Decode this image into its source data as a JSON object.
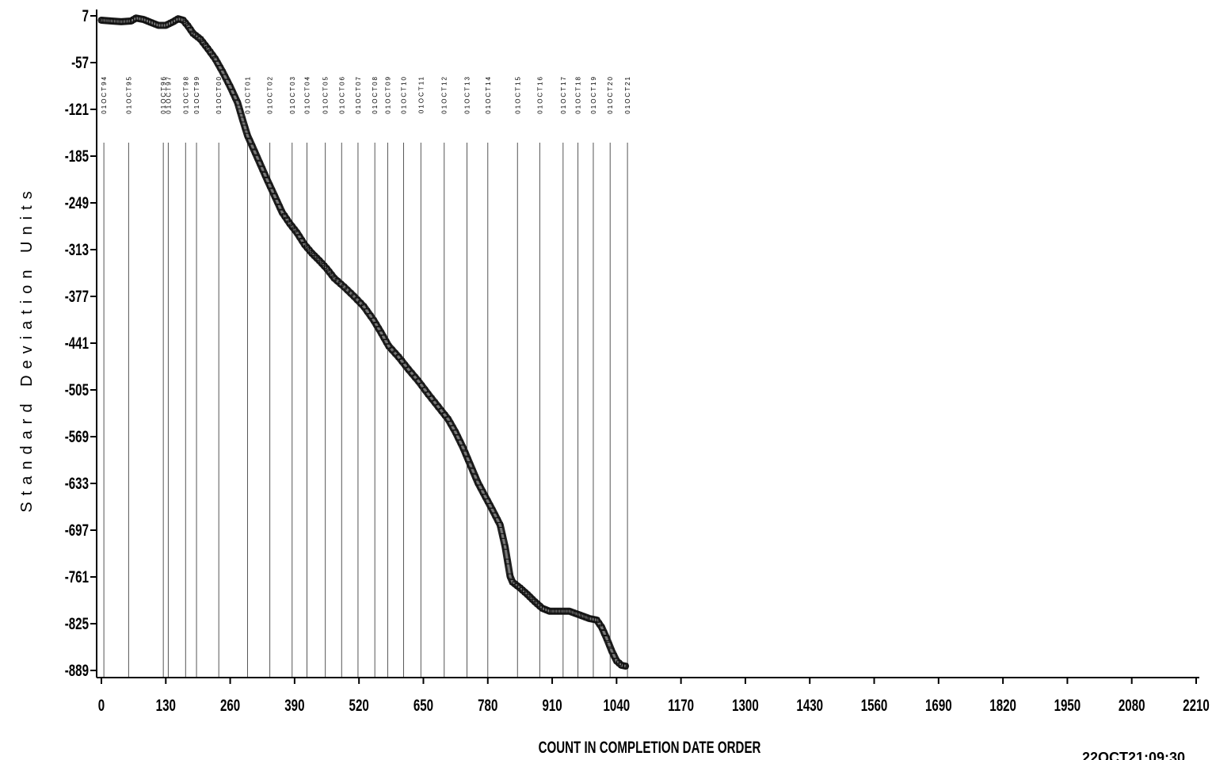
{
  "chart_data": {
    "type": "line",
    "xlabel": "COUNT IN COMPLETION DATE ORDER",
    "ylabel": "Standard Deviation Units",
    "timestamp": "22OCT21:09:30",
    "xlim": [
      0,
      2210
    ],
    "ylim": [
      -889,
      7
    ],
    "x_ticks": [
      0,
      130,
      260,
      390,
      520,
      650,
      780,
      910,
      1040,
      1170,
      1300,
      1430,
      1560,
      1690,
      1820,
      1950,
      2080,
      2210
    ],
    "x_tick_labels": [
      "0",
      "130",
      "260",
      "390",
      "520",
      "650",
      "780",
      "910",
      "1040",
      "1170",
      "1300",
      "1430",
      "1560",
      "1690",
      "1820",
      "1950",
      "2080",
      "2210"
    ],
    "y_ticks": [
      7,
      -57,
      -121,
      -185,
      -249,
      -313,
      -377,
      -441,
      -505,
      -569,
      -633,
      -697,
      -761,
      -825,
      -889
    ],
    "y_tick_labels": [
      "7",
      "-57",
      "-121",
      "-185",
      "-249",
      "-313",
      "-377",
      "-441",
      "-505",
      "-569",
      "-633",
      "-697",
      "-761",
      "-825",
      "-889"
    ],
    "reference_lines": [
      {
        "x": 5,
        "label": "01OCT94"
      },
      {
        "x": 55,
        "label": "01OCT95"
      },
      {
        "x": 125,
        "label": "01OCT96"
      },
      {
        "x": 135,
        "label": "01OCT97"
      },
      {
        "x": 170,
        "label": "01OCT98"
      },
      {
        "x": 192,
        "label": "01OCT99"
      },
      {
        "x": 237,
        "label": "01OCT00"
      },
      {
        "x": 295,
        "label": "01OCT01"
      },
      {
        "x": 340,
        "label": "01OCT02"
      },
      {
        "x": 385,
        "label": "01OCT03"
      },
      {
        "x": 415,
        "label": "01OCT04"
      },
      {
        "x": 452,
        "label": "01OCT05"
      },
      {
        "x": 485,
        "label": "01OCT06"
      },
      {
        "x": 518,
        "label": "01OCT07"
      },
      {
        "x": 552,
        "label": "01OCT08"
      },
      {
        "x": 578,
        "label": "01OCT09"
      },
      {
        "x": 610,
        "label": "01OCT10"
      },
      {
        "x": 645,
        "label": "01OCT11"
      },
      {
        "x": 692,
        "label": "01OCT12"
      },
      {
        "x": 738,
        "label": "01OCT13"
      },
      {
        "x": 780,
        "label": "01OCT14"
      },
      {
        "x": 840,
        "label": "01OCT15"
      },
      {
        "x": 885,
        "label": "01OCT16"
      },
      {
        "x": 932,
        "label": "01OCT17"
      },
      {
        "x": 962,
        "label": "01OCT18"
      },
      {
        "x": 993,
        "label": "01OCT19"
      },
      {
        "x": 1027,
        "label": "01OCT20"
      },
      {
        "x": 1062,
        "label": "01OCT21"
      }
    ],
    "series": [
      {
        "marker": "square",
        "points": [
          [
            0,
            1
          ],
          [
            20,
            0
          ],
          [
            40,
            -1
          ],
          [
            60,
            0
          ],
          [
            70,
            4
          ],
          [
            85,
            2
          ],
          [
            100,
            -2
          ],
          [
            115,
            -6
          ],
          [
            130,
            -6
          ],
          [
            145,
            -1
          ],
          [
            155,
            3
          ],
          [
            165,
            1
          ],
          [
            175,
            -7
          ],
          [
            185,
            -17
          ],
          [
            200,
            -25
          ],
          [
            215,
            -38
          ],
          [
            230,
            -52
          ],
          [
            245,
            -70
          ],
          [
            260,
            -90
          ],
          [
            275,
            -112
          ],
          [
            285,
            -135
          ],
          [
            295,
            -157
          ],
          [
            305,
            -172
          ],
          [
            320,
            -195
          ],
          [
            335,
            -218
          ],
          [
            350,
            -240
          ],
          [
            365,
            -262
          ],
          [
            380,
            -277
          ],
          [
            395,
            -290
          ],
          [
            410,
            -306
          ],
          [
            425,
            -318
          ],
          [
            440,
            -328
          ],
          [
            455,
            -339
          ],
          [
            470,
            -352
          ],
          [
            490,
            -364
          ],
          [
            510,
            -377
          ],
          [
            530,
            -391
          ],
          [
            550,
            -410
          ],
          [
            565,
            -427
          ],
          [
            580,
            -445
          ],
          [
            600,
            -460
          ],
          [
            620,
            -477
          ],
          [
            640,
            -493
          ],
          [
            660,
            -511
          ],
          [
            680,
            -528
          ],
          [
            700,
            -545
          ],
          [
            715,
            -563
          ],
          [
            730,
            -584
          ],
          [
            745,
            -608
          ],
          [
            760,
            -632
          ],
          [
            775,
            -651
          ],
          [
            790,
            -670
          ],
          [
            805,
            -690
          ],
          [
            815,
            -720
          ],
          [
            825,
            -760
          ],
          [
            830,
            -768
          ],
          [
            845,
            -776
          ],
          [
            860,
            -785
          ],
          [
            875,
            -795
          ],
          [
            890,
            -804
          ],
          [
            905,
            -808
          ],
          [
            925,
            -808
          ],
          [
            945,
            -808
          ],
          [
            965,
            -813
          ],
          [
            985,
            -818
          ],
          [
            1000,
            -820
          ],
          [
            1010,
            -830
          ],
          [
            1020,
            -845
          ],
          [
            1030,
            -862
          ],
          [
            1040,
            -876
          ],
          [
            1050,
            -882
          ],
          [
            1058,
            -883
          ]
        ]
      }
    ]
  }
}
